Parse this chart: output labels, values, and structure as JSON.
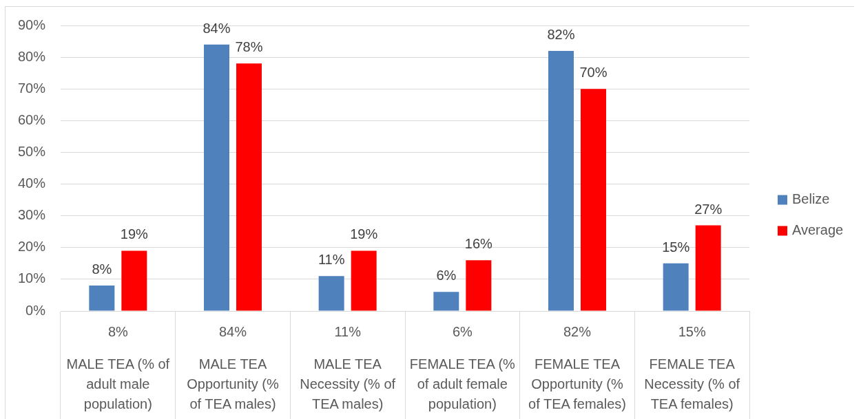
{
  "chart_data": {
    "type": "bar",
    "categories": [
      "MALE TEA (% of adult male population)",
      "MALE TEA Opportunity (% of TEA males)",
      "MALE TEA Necessity (% of TEA males)",
      "FEMALE TEA (% of adult female population)",
      "FEMALE TEA Opportunity (% of TEA females)",
      "FEMALE TEA Necessity (% of TEA females)"
    ],
    "series": [
      {
        "name": "Belize",
        "color": "#4f81bd",
        "values": [
          8,
          84,
          11,
          6,
          82,
          15
        ],
        "value_labels": [
          "8%",
          "84%",
          "11%",
          "6%",
          "82%",
          "15%"
        ]
      },
      {
        "name": "Average",
        "color": "#ff0000",
        "values": [
          19,
          78,
          19,
          16,
          70,
          27
        ],
        "value_labels": [
          "19%",
          "78%",
          "19%",
          "16%",
          "70%",
          "27%"
        ]
      }
    ],
    "ylim": [
      0,
      90
    ],
    "yticks": [
      {
        "value": 0,
        "label": "0%"
      },
      {
        "value": 10,
        "label": "10%"
      },
      {
        "value": 20,
        "label": "20%"
      },
      {
        "value": 30,
        "label": "30%"
      },
      {
        "value": 40,
        "label": "40%"
      },
      {
        "value": 50,
        "label": "50%"
      },
      {
        "value": 60,
        "label": "60%"
      },
      {
        "value": 70,
        "label": "70%"
      },
      {
        "value": 80,
        "label": "80%"
      },
      {
        "value": 90,
        "label": "90%"
      }
    ],
    "grid": "y",
    "legend": "right"
  }
}
